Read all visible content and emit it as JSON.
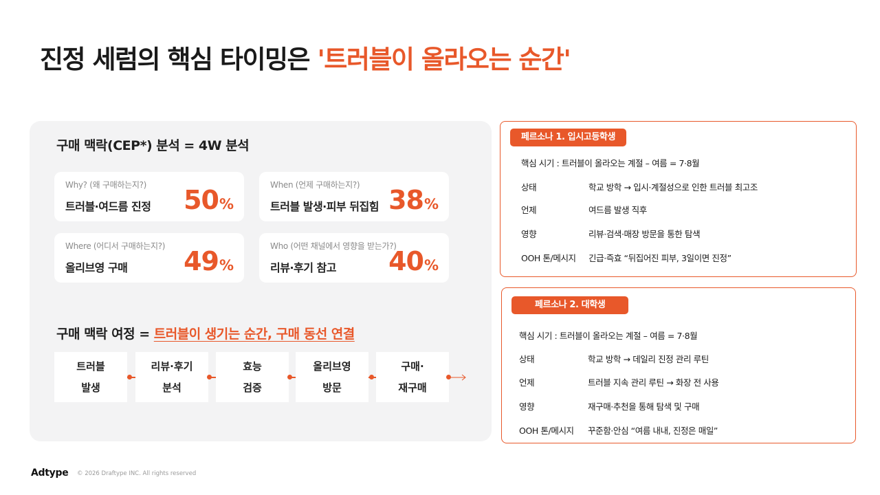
{
  "title": {
    "prefix": "진정 세럼의 핵심 타이밍은 ",
    "accent": "'트러블이 올라오는 순간'"
  },
  "analysis": {
    "heading": "구매 맥락(CEP*) 분석 = 4W 분석",
    "cards": [
      {
        "question": "Why? (왜 구매하는지?)",
        "answer": "트러블·여드름 진정",
        "value": "50",
        "unit": "%"
      },
      {
        "question": "When (언제 구매하는지?)",
        "answer": "트러블 발생·피부 뒤집힘",
        "value": "38",
        "unit": "%"
      },
      {
        "question": "Where (어디서 구매하는지?)",
        "answer": "올리브영 구매",
        "value": "49",
        "unit": "%"
      },
      {
        "question": "Who (어떤 채널에서 영향을 받는가?)",
        "answer": "리뷰·후기 참고",
        "value": "40",
        "unit": "%"
      }
    ]
  },
  "journey": {
    "heading_prefix": "구매 맥락 여정 = ",
    "heading_highlight": "트러블이 생기는 순간, 구매 동선 연결",
    "steps": [
      {
        "line1": "트러블",
        "line2": "발생"
      },
      {
        "line1": "리뷰·후기",
        "line2": "분석"
      },
      {
        "line1": "효능",
        "line2": "검증"
      },
      {
        "line1": "올리브영",
        "line2": "방문"
      },
      {
        "line1": "구매·",
        "line2": "재구매"
      }
    ]
  },
  "personas": [
    {
      "tag": "페르소나 1. 입시고등학생",
      "key_period": "핵심 시기 : 트러블이 올라오는 계절 – 여름 = 7·8월",
      "rows": [
        {
          "label": "상태",
          "value": "학교 방학 → 입시·계절성으로 인한 트러블 최고조"
        },
        {
          "label": "언제",
          "value": "여드름 발생 직후"
        },
        {
          "label": "영향",
          "value": "리뷰·검색·매장 방문을 통한 탐색"
        },
        {
          "label": "OOH 톤/메시지",
          "value": "긴급·즉효 “뒤집어진 피부, 3일이면 진정”"
        }
      ]
    },
    {
      "tag": "페르소나 2. 대학생",
      "key_period": "핵심 시기 : 트러블이 올라오는 계절 – 여름 = 7·8월",
      "rows": [
        {
          "label": "상태",
          "value": "학교 방학 → 데일리 진정 관리 루틴"
        },
        {
          "label": "언제",
          "value": "트러블 지속 관리 루틴 → 화장 전 사용"
        },
        {
          "label": "영향",
          "value": "재구매·추천을 통해 탐색 및 구매"
        },
        {
          "label": "OOH 톤/메시지",
          "value": "꾸준함·안심 “여름 내내, 진정은 매일”"
        }
      ]
    }
  ],
  "footer": {
    "logo": "Adtype",
    "copyright": "© 2026 Draftype INC. All rights reserved"
  },
  "colors": {
    "accent": "#e8582a",
    "panel": "#f3f3f4"
  }
}
